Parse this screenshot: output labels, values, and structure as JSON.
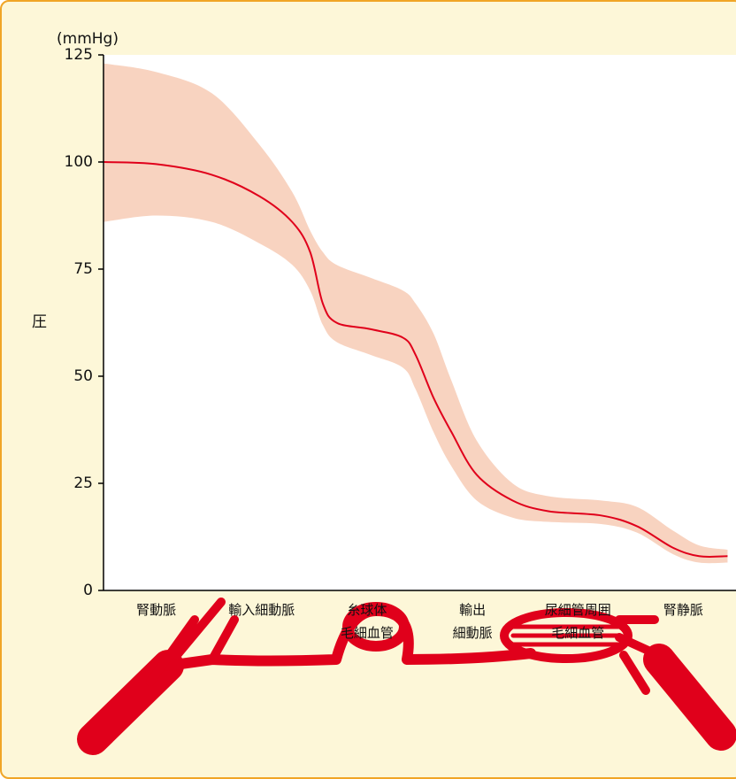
{
  "chart_data": {
    "type": "line",
    "y_unit": "(mmHg)",
    "ylabel": "圧",
    "ylim": [
      0,
      125
    ],
    "yticks": [
      0,
      25,
      50,
      75,
      100,
      125
    ],
    "xlim": [
      0,
      6
    ],
    "categories": [
      "腎動脈",
      "輸入細動脈",
      "糸球体\n毛細血管",
      "輸出\n細動脈",
      "尿細管周囲\n毛細血管",
      "腎静脈"
    ],
    "x": [
      0,
      0.5,
      1.03,
      1.48,
      1.79,
      1.96,
      2.08,
      2.21,
      2.53,
      2.84,
      2.96,
      3.13,
      3.3,
      3.54,
      3.88,
      4.22,
      4.72,
      5.06,
      5.4,
      5.65,
      5.92
    ],
    "values": [
      100,
      99.5,
      97,
      92,
      86,
      79,
      67,
      62.5,
      61,
      59,
      55,
      45,
      37,
      27,
      21,
      18.5,
      17.5,
      15,
      10,
      8,
      8
    ],
    "color": "#e0001b",
    "band": {
      "color": "#f8d3c0",
      "upper": [
        123,
        121,
        116,
        104,
        93,
        84,
        79,
        76,
        73,
        70,
        67,
        60,
        49,
        35,
        25,
        22,
        21,
        19.5,
        14,
        10.5,
        9.5
      ],
      "lower": [
        86,
        87.5,
        86,
        81,
        76,
        70,
        62,
        58,
        55,
        52,
        47,
        37,
        29,
        21,
        17,
        16,
        15.5,
        13.5,
        8.5,
        6.5,
        6.5
      ]
    }
  }
}
